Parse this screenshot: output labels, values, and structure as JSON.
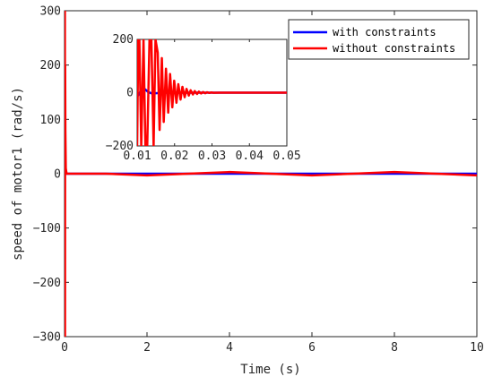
{
  "chart_data": [
    {
      "type": "line",
      "title": "",
      "xlabel": "Time (s)",
      "ylabel": "speed of motor1 (rad/s)",
      "xlim": [
        0,
        10
      ],
      "ylim": [
        -300,
        300
      ],
      "xticks": [
        0,
        2,
        4,
        6,
        8,
        10
      ],
      "yticks": [
        -300,
        -200,
        -100,
        0,
        100,
        200,
        300
      ],
      "grid": false,
      "legend": {
        "position": "top-right"
      },
      "series": [
        {
          "name": "with constraints",
          "color": "#0000ff",
          "x": [
            0,
            0.003,
            0.006,
            0.01,
            0.015,
            0.02,
            0.05,
            10
          ],
          "y": [
            0,
            5,
            3,
            0,
            0,
            0,
            0,
            0
          ]
        },
        {
          "name": "without constraints",
          "color": "#ff0000",
          "x": [
            0,
            0.003,
            0.006,
            0.009,
            0.012,
            0.015,
            0.02,
            0.03,
            0.05,
            1,
            2,
            3,
            4,
            5,
            6,
            7,
            8,
            9,
            10
          ],
          "y": [
            0,
            300,
            -300,
            300,
            -300,
            200,
            80,
            10,
            0,
            0,
            -3,
            0,
            3,
            0,
            -3,
            0,
            3,
            0,
            -3
          ]
        }
      ]
    },
    {
      "type": "line",
      "title": "",
      "xlabel": "",
      "ylabel": "",
      "xlim": [
        0.01,
        0.05
      ],
      "ylim": [
        -200,
        200
      ],
      "xticks": [
        0.01,
        0.02,
        0.03,
        0.04,
        0.05
      ],
      "yticks": [
        -200,
        0,
        200
      ],
      "grid": false,
      "series": [
        {
          "color": "#0000ff",
          "x": [
            0.01,
            0.0105,
            0.011,
            0.0115,
            0.012,
            0.0125,
            0.013,
            0.014,
            0.015,
            0.017,
            0.02,
            0.05
          ],
          "y": [
            -15,
            -5,
            8,
            15,
            14,
            8,
            2,
            -3,
            -2,
            0,
            0,
            0
          ]
        },
        {
          "color": "#ff0000",
          "x": [
            0.01,
            0.0103,
            0.0106,
            0.0111,
            0.0117,
            0.0122,
            0.0127,
            0.0133,
            0.0138,
            0.0144,
            0.0149,
            0.0155,
            0.016,
            0.0166,
            0.0171,
            0.0177,
            0.0183,
            0.0188,
            0.0194,
            0.0199,
            0.0205,
            0.021,
            0.0216,
            0.0221,
            0.0227,
            0.0232,
            0.0238,
            0.0243,
            0.0249,
            0.0254,
            0.026,
            0.0265,
            0.0271,
            0.0276,
            0.0282,
            0.0287,
            0.0293,
            0.0298,
            0.0304,
            0.032,
            0.05
          ],
          "y": [
            -200,
            200,
            200,
            -200,
            200,
            -200,
            -200,
            200,
            200,
            -200,
            200,
            150,
            -140,
            130,
            -110,
            90,
            -75,
            70,
            -55,
            45,
            -38,
            32,
            -26,
            22,
            -17,
            14,
            -11,
            9,
            -7,
            6,
            -5,
            4,
            -3,
            2.5,
            -2,
            1.5,
            -1,
            0.8,
            -0.5,
            0,
            0
          ]
        }
      ]
    }
  ]
}
